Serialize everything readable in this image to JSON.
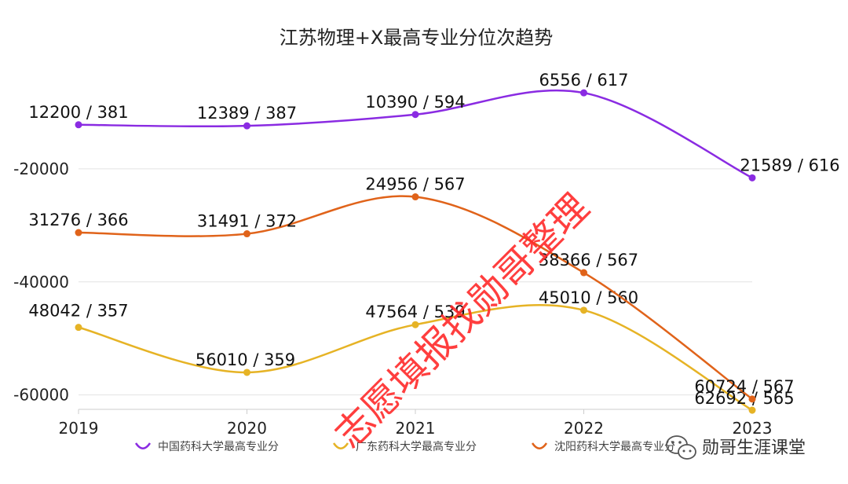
{
  "chart_data": {
    "type": "line",
    "title": "江苏物理+X最高专业分位次趋势",
    "categories": [
      "2019",
      "2020",
      "2021",
      "2022",
      "2023"
    ],
    "y_axis": {
      "ticks": [
        -20000,
        -40000,
        -60000
      ],
      "tick_labels": [
        "-20000",
        "-40000",
        "-60000"
      ],
      "ylim": [
        0,
        -65000
      ],
      "grid": true
    },
    "series": [
      {
        "name": "中国药科大学最高专业分",
        "color": "#8a2be2",
        "values": [
          -12200,
          -12389,
          -10390,
          -6556,
          -21589
        ],
        "labels": [
          "12200 / 381",
          "12389 / 387",
          "10390 / 594",
          "6556 / 617",
          "21589 / 616"
        ]
      },
      {
        "name": "广东药科大学最高专业分",
        "color": "#e6b325",
        "values": [
          -48042,
          -56010,
          -47564,
          -45010,
          -62692
        ],
        "labels": [
          "48042 / 357",
          "56010 / 359",
          "47564 / 539",
          "45010 / 560",
          "62692 / 565"
        ]
      },
      {
        "name": "沈阳药科大学最高专业分",
        "color": "#e0631a",
        "values": [
          -31276,
          -31491,
          -24956,
          -38366,
          -60724
        ],
        "labels": [
          "31276 / 366",
          "31491 / 372",
          "24956 / 567",
          "38366 / 567",
          "60724 / 567"
        ]
      }
    ],
    "legend_position": "bottom"
  },
  "watermark": "志愿填报找勋哥整理",
  "brand": "勋哥生涯课堂"
}
